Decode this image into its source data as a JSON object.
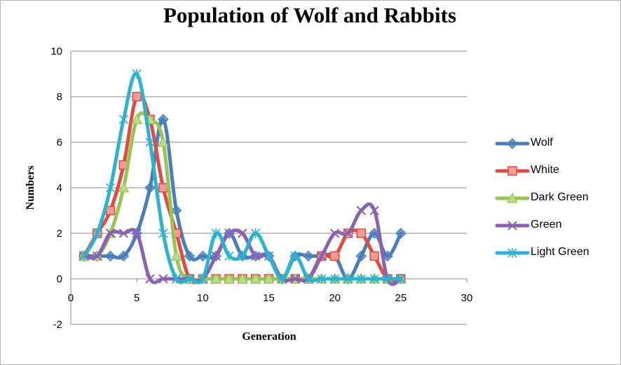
{
  "chart_data": {
    "type": "line",
    "title": "Population of Wolf and Rabbits",
    "xlabel": "Generation",
    "ylabel": "Numbers",
    "xlim": [
      0,
      30
    ],
    "ylim": [
      -2,
      10
    ],
    "x_ticks": [
      "0",
      "5",
      "10",
      "15",
      "20",
      "25",
      "30"
    ],
    "y_ticks": [
      "-2",
      "0",
      "2",
      "4",
      "6",
      "8",
      "10"
    ],
    "grid": "horizontal",
    "legend_position": "right",
    "series": [
      {
        "name": "Wolf",
        "color": "#4a7ebb",
        "marker": "diamond",
        "x": [
          1,
          2,
          3,
          4,
          5,
          6,
          7,
          8,
          9,
          10,
          11,
          12,
          13,
          14,
          15,
          16,
          17,
          18,
          19,
          20,
          21,
          22,
          23,
          24,
          25
        ],
        "values": [
          1,
          1,
          1,
          1,
          2,
          4,
          7,
          3,
          1,
          1,
          1,
          2,
          1,
          1,
          1,
          0,
          1,
          1,
          1,
          1,
          0,
          1,
          2,
          1,
          2
        ]
      },
      {
        "name": "White",
        "color": "#e24b43",
        "marker": "square",
        "x": [
          1,
          2,
          3,
          4,
          5,
          6,
          7,
          8,
          9,
          10,
          11,
          12,
          13,
          14,
          15,
          16,
          17,
          18,
          19,
          20,
          21,
          22,
          23,
          24,
          25
        ],
        "values": [
          1,
          2,
          3,
          5,
          8,
          7,
          4,
          2,
          0,
          0,
          0,
          0,
          0,
          0,
          0,
          0,
          0,
          0,
          1,
          1,
          2,
          2,
          1,
          0,
          0
        ]
      },
      {
        "name": "Dark Green",
        "color": "#98c454",
        "marker": "triangle",
        "x": [
          1,
          2,
          3,
          4,
          5,
          6,
          7,
          8,
          9,
          10,
          11,
          12,
          13,
          14,
          15,
          16,
          17,
          18,
          19,
          20,
          21,
          22,
          23,
          24,
          25
        ],
        "values": [
          1,
          1,
          2,
          4,
          7,
          7,
          6,
          1,
          0,
          0,
          0,
          0,
          0,
          0,
          0,
          0,
          0,
          0,
          0,
          0,
          0,
          0,
          0,
          0,
          0
        ]
      },
      {
        "name": "Green",
        "color": "#8a62b0",
        "marker": "x",
        "x": [
          1,
          2,
          3,
          4,
          5,
          6,
          7,
          8,
          9,
          10,
          11,
          12,
          13,
          14,
          15,
          16,
          17,
          18,
          19,
          20,
          21,
          22,
          23,
          24,
          25
        ],
        "values": [
          1,
          1,
          2,
          2,
          2,
          0,
          0,
          0,
          0,
          0,
          1,
          2,
          2,
          1,
          1,
          0,
          0,
          0,
          1,
          2,
          2,
          3,
          3,
          0,
          0
        ]
      },
      {
        "name": "Light Green",
        "color": "#2bb3cf",
        "marker": "star",
        "x": [
          1,
          2,
          3,
          4,
          5,
          6,
          7,
          8,
          9,
          10,
          11,
          12,
          13,
          14,
          15,
          16,
          17,
          18,
          19,
          20,
          21,
          22,
          23,
          24,
          25
        ],
        "values": [
          1,
          2,
          4,
          7,
          9,
          6,
          2,
          0,
          0,
          0,
          2,
          1,
          1,
          2,
          1,
          0,
          1,
          0,
          0,
          0,
          0,
          0,
          0,
          0,
          0
        ]
      }
    ]
  }
}
